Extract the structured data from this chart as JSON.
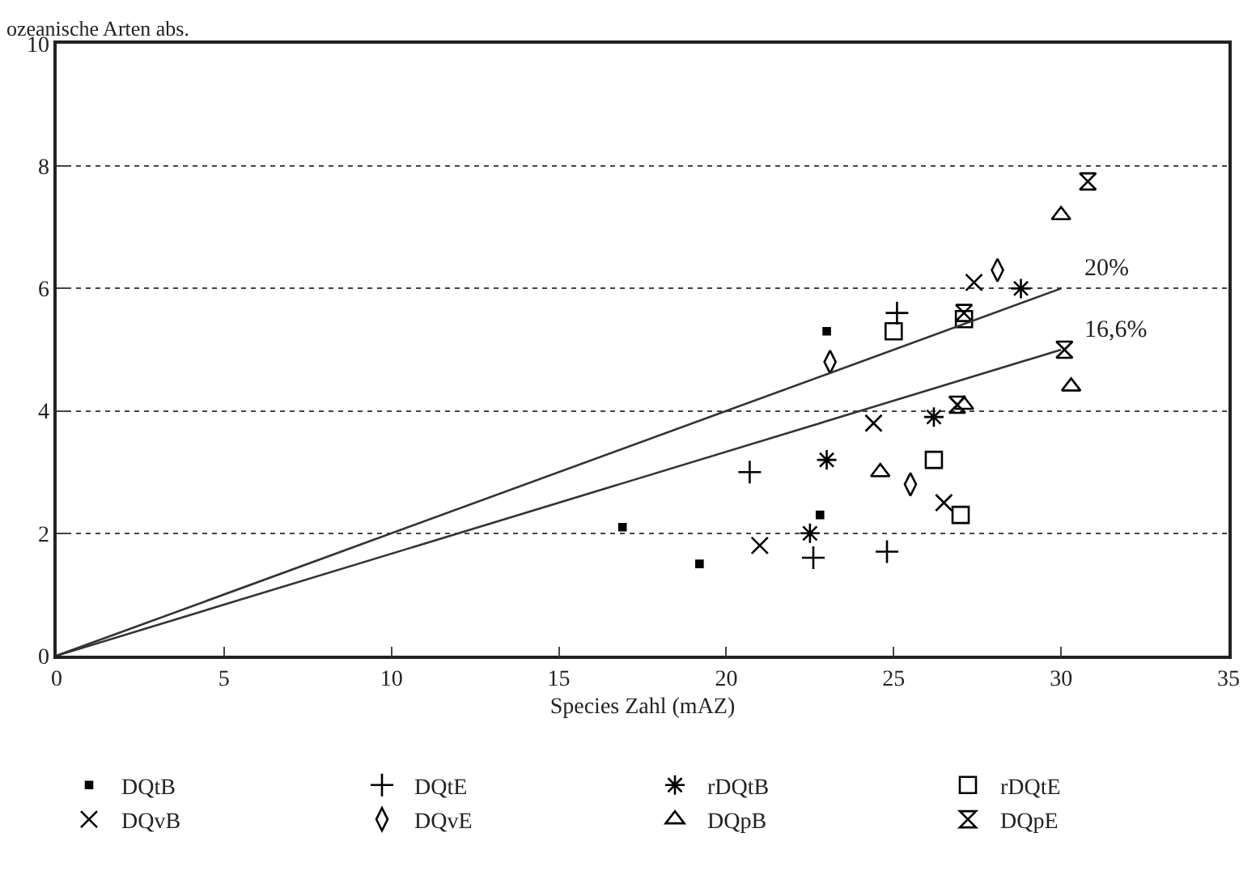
{
  "chart_data": {
    "type": "scatter",
    "ylabel": "ozeanische Arten abs.",
    "xlabel": "Species Zahl (mAZ)",
    "xlim": [
      0,
      35
    ],
    "xticks": [
      0,
      5,
      10,
      15,
      20,
      25,
      30,
      35
    ],
    "ylim": [
      0,
      10
    ],
    "yticks": [
      0,
      2,
      4,
      6,
      8,
      10
    ],
    "grid": "y",
    "legend": "bottom",
    "series": [
      {
        "name": "DQtB",
        "color": "#000000",
        "marker": "square",
        "x": [
          16.9,
          19.2,
          22.8,
          23.0
        ],
        "values": [
          2.1,
          1.5,
          2.3,
          5.3
        ]
      },
      {
        "name": "DQtE",
        "color": "#000000",
        "marker": "cross",
        "x": [
          20.7,
          22.6,
          24.8,
          25.1
        ],
        "values": [
          3.0,
          1.6,
          1.7,
          5.6
        ]
      },
      {
        "name": "rDQtB",
        "color": "#000000",
        "x": [
          23.0,
          22.5,
          26.2,
          28.8
        ],
        "values": [
          3.2,
          2.0,
          3.9,
          6.0
        ]
      },
      {
        "name": "rDQtE",
        "color": "#000000",
        "marker": "square-open",
        "x": [
          25.0,
          27.1,
          26.2,
          27.0
        ],
        "values": [
          5.3,
          5.5,
          3.2,
          2.3
        ]
      },
      {
        "name": "DQvB",
        "color": "#000000",
        "marker": "x",
        "x": [
          21.0,
          26.5,
          24.4,
          27.4
        ],
        "values": [
          1.8,
          2.5,
          3.8,
          6.1
        ]
      },
      {
        "name": "DQvE",
        "color": "#000000",
        "marker": "diamond",
        "x": [
          23.1,
          28.1,
          25.5
        ],
        "values": [
          4.8,
          6.3,
          2.8
        ]
      },
      {
        "name": "DQpB",
        "color": "#000000",
        "marker": "triangle",
        "x": [
          24.6,
          27.1,
          30.3,
          30.0
        ],
        "values": [
          3.0,
          4.1,
          4.4,
          7.2
        ]
      },
      {
        "name": "DQpE",
        "color": "#000000",
        "x": [
          27.1,
          26.9,
          30.1,
          30.8
        ],
        "values": [
          5.6,
          4.1,
          5.0,
          7.75
        ]
      },
      {
        "type": "line",
        "color": "#333333",
        "x": [
          0,
          30
        ],
        "values": [
          0,
          6
        ]
      },
      {
        "type": "line",
        "color": "#333333",
        "x": [
          0,
          30
        ],
        "values": [
          0,
          5
        ]
      }
    ],
    "annotations": [
      {
        "text": "20%",
        "x": 30,
        "y": 6
      },
      {
        "text": "16,6%",
        "x": 30,
        "y": 5
      }
    ]
  }
}
